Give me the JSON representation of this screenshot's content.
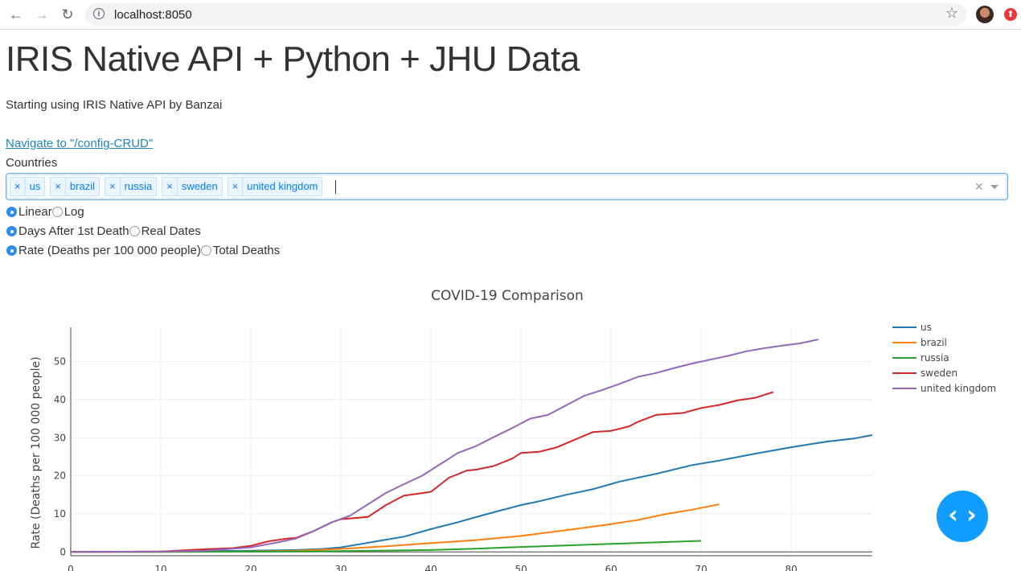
{
  "browser": {
    "url": "localhost:8050",
    "back_icon": "←",
    "forward_icon": "→",
    "reload_icon": "↻",
    "star_icon": "☆"
  },
  "page": {
    "title": "IRIS Native API + Python + JHU Data",
    "subtitle": "Starting using IRIS Native API by Banzai",
    "nav_link": "Navigate to \"/config-CRUD\"",
    "countries_label": "Countries",
    "selected_countries": [
      "us",
      "brazil",
      "russia",
      "sweden",
      "united kingdom"
    ],
    "chip_remove": "×",
    "clear_icon": "×",
    "scale": {
      "options": [
        "Linear",
        "Log"
      ],
      "selected": "Linear"
    },
    "xmode": {
      "options": [
        "Days After 1st Death",
        "Real Dates"
      ],
      "selected": "Days After 1st Death"
    },
    "ymode": {
      "options": [
        "Rate (Deaths per 100 000 people)",
        "Total Deaths"
      ],
      "selected": "Rate (Deaths per 100 000 people)"
    },
    "fab_label": "‹ ›"
  },
  "chart_data": {
    "type": "line",
    "title": "COVID-19 Comparison",
    "xlabel": "",
    "ylabel": "Rate (Deaths per 100 000 people)",
    "xlim": [
      0,
      89
    ],
    "ylim": [
      -1,
      59
    ],
    "xticks": [
      0,
      10,
      20,
      30,
      40,
      50,
      60,
      70,
      80
    ],
    "yticks": [
      0,
      10,
      20,
      30,
      40,
      50
    ],
    "grid": true,
    "legend": "top-right",
    "series": [
      {
        "name": "us",
        "color": "#1f77b4",
        "x": [
          0,
          10,
          20,
          25,
          28,
          30,
          32,
          34,
          37,
          40,
          43,
          46,
          50,
          52,
          55,
          58,
          61,
          65,
          69,
          72,
          76,
          80,
          84,
          87,
          89
        ],
        "y": [
          0,
          0.05,
          0.3,
          0.5,
          0.8,
          1.2,
          2,
          2.8,
          4,
          6,
          7.8,
          9.8,
          12.3,
          13.3,
          15,
          16.5,
          18.5,
          20.5,
          22.8,
          24,
          25.8,
          27.5,
          29,
          29.8,
          30.7
        ]
      },
      {
        "name": "brazil",
        "color": "#ff7f0e",
        "x": [
          0,
          10,
          20,
          25,
          30,
          35,
          40,
          45,
          50,
          55,
          60,
          63,
          66,
          69,
          72
        ],
        "y": [
          0,
          0.02,
          0.1,
          0.3,
          0.8,
          1.5,
          2.3,
          3.1,
          4.2,
          5.7,
          7.3,
          8.4,
          9.9,
          11.1,
          12.5
        ]
      },
      {
        "name": "russia",
        "color": "#2ca02c",
        "x": [
          0,
          10,
          20,
          30,
          40,
          45,
          50,
          55,
          60,
          65,
          70
        ],
        "y": [
          0,
          0.01,
          0.05,
          0.2,
          0.5,
          0.85,
          1.3,
          1.7,
          2.1,
          2.5,
          2.9
        ]
      },
      {
        "name": "sweden",
        "color": "#d62728",
        "x": [
          0,
          10,
          14,
          18,
          20,
          22,
          24,
          25,
          27,
          29,
          30,
          33,
          35,
          37,
          38,
          40,
          42,
          44,
          45,
          47,
          49,
          50,
          52,
          54,
          56,
          58,
          60,
          62,
          63,
          65,
          68,
          70,
          72,
          74,
          76,
          78
        ],
        "y": [
          0,
          0.1,
          0.6,
          1,
          1.6,
          2.8,
          3.5,
          3.7,
          5.5,
          7.8,
          8.6,
          9.2,
          12.3,
          14.8,
          15.1,
          15.8,
          19.5,
          21.4,
          21.6,
          22.6,
          24.5,
          26,
          26.3,
          27.5,
          29.5,
          31.5,
          31.8,
          33,
          34.2,
          36,
          36.5,
          37.8,
          38.6,
          39.8,
          40.5,
          42
        ]
      },
      {
        "name": "united kingdom",
        "color": "#9467bd",
        "x": [
          0,
          10,
          15,
          20,
          23,
          25,
          27,
          29,
          31,
          33,
          35,
          37,
          39,
          41,
          43,
          45,
          47,
          49,
          51,
          53,
          55,
          57,
          59,
          61,
          63,
          65,
          67,
          69,
          71,
          73,
          75,
          77,
          79,
          81,
          83
        ],
        "y": [
          0,
          0.1,
          0.3,
          1.2,
          2.5,
          3.5,
          5.5,
          7.8,
          9.5,
          12.5,
          15.5,
          17.8,
          20,
          23,
          26,
          27.8,
          30.2,
          32.5,
          35,
          36,
          38.5,
          41,
          42.5,
          44.2,
          46,
          47,
          48.3,
          49.5,
          50.5,
          51.5,
          52.7,
          53.5,
          54.2,
          54.8,
          55.8
        ]
      }
    ]
  }
}
